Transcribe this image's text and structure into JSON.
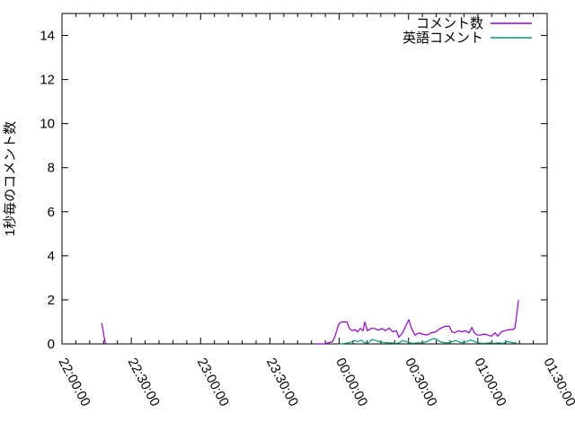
{
  "chart_data": {
    "type": "line",
    "title": "",
    "xlabel": "",
    "ylabel": "1秒毎のコメント数",
    "grid": false,
    "legend_position": "top-right-inside",
    "x_axis": {
      "unit": "time HH:MM:SS (minutes measured from 22:00:00)",
      "start_minutes": 0,
      "end_minutes": 210,
      "minor_tick_interval_minutes": 6,
      "major_ticks": [
        {
          "minutes": 0,
          "label": "22:00:00"
        },
        {
          "minutes": 30,
          "label": "22:30:00"
        },
        {
          "minutes": 60,
          "label": "23:00:00"
        },
        {
          "minutes": 90,
          "label": "23:30:00"
        },
        {
          "minutes": 120,
          "label": "00:00:00"
        },
        {
          "minutes": 150,
          "label": "00:30:00"
        },
        {
          "minutes": 180,
          "label": "01:00:00"
        },
        {
          "minutes": 210,
          "label": "01:30:00"
        }
      ]
    },
    "y_axis": {
      "min": 0,
      "max": 15,
      "tick_values": [
        0,
        2,
        4,
        6,
        8,
        10,
        12,
        14
      ]
    },
    "series": [
      {
        "name": "コメント数",
        "color": "#9400d3",
        "segments": [
          [
            [
              17.2,
              0.95
            ],
            [
              18.8,
              0
            ]
          ],
          [
            [
              110,
              0
            ],
            [
              112,
              0
            ],
            [
              113.6,
              0
            ],
            [
              115.2,
              0.05
            ],
            [
              117.1,
              0.1
            ],
            [
              118.2,
              0.35
            ],
            [
              119.8,
              0.9
            ],
            [
              121,
              1
            ],
            [
              123.3,
              1
            ],
            [
              124.4,
              0.7
            ],
            [
              125.6,
              0.6
            ],
            [
              126.8,
              0.65
            ],
            [
              128,
              0.55
            ],
            [
              129.1,
              0.7
            ],
            [
              130.3,
              0.6
            ],
            [
              131.1,
              1
            ],
            [
              132.2,
              0.6
            ],
            [
              133.8,
              0.7
            ],
            [
              135.4,
              0.7
            ],
            [
              136.9,
              0.62
            ],
            [
              138.5,
              0.7
            ],
            [
              140,
              0.6
            ],
            [
              141.6,
              0.72
            ],
            [
              143.1,
              0.55
            ],
            [
              144.7,
              0.6
            ],
            [
              145.8,
              0.3
            ],
            [
              147.4,
              0.5
            ],
            [
              149,
              0.85
            ],
            [
              150.1,
              1.1
            ],
            [
              151.3,
              0.7
            ],
            [
              152.8,
              0.4
            ],
            [
              154.4,
              0.5
            ],
            [
              156,
              0.45
            ],
            [
              157.9,
              0.4
            ],
            [
              159.9,
              0.5
            ],
            [
              161.8,
              0.55
            ],
            [
              163.7,
              0.7
            ],
            [
              165.7,
              0.8
            ],
            [
              167.6,
              0.8
            ],
            [
              168.8,
              0.55
            ],
            [
              170,
              0.5
            ],
            [
              171.5,
              0.6
            ],
            [
              173.1,
              0.55
            ],
            [
              174.6,
              0.6
            ],
            [
              176.2,
              0.5
            ],
            [
              177.4,
              0.75
            ],
            [
              178.5,
              0.5
            ],
            [
              179.7,
              0.4
            ],
            [
              181.2,
              0.4
            ],
            [
              182.8,
              0.45
            ],
            [
              184.4,
              0.4
            ],
            [
              185.9,
              0.35
            ],
            [
              187.5,
              0.5
            ],
            [
              188.6,
              0.35
            ],
            [
              190.2,
              0.55
            ],
            [
              191.7,
              0.6
            ],
            [
              193.3,
              0.65
            ],
            [
              194.9,
              0.65
            ],
            [
              196,
              0.7
            ],
            [
              196.8,
              1.3
            ],
            [
              197.6,
              2
            ]
          ]
        ]
      },
      {
        "name": "英語コメント",
        "color": "#009e73",
        "segments": [
          [
            [
              120.2,
              0
            ],
            [
              122,
              0.02
            ],
            [
              124,
              0.05
            ],
            [
              125.6,
              0.1
            ],
            [
              126.8,
              0.15
            ],
            [
              128,
              0.1
            ],
            [
              129.5,
              0.17
            ],
            [
              131,
              0.05
            ],
            [
              132.5,
              0.05
            ],
            [
              134.2,
              0.2
            ],
            [
              135.8,
              0.15
            ],
            [
              137.3,
              0.1
            ],
            [
              139,
              0.07
            ],
            [
              140.5,
              0.05
            ],
            [
              142.5,
              0.05
            ],
            [
              144.5,
              0.03
            ],
            [
              146,
              0.05
            ],
            [
              147.4,
              0.15
            ],
            [
              149,
              0.1
            ],
            [
              150.5,
              0.05
            ],
            [
              152,
              0.03
            ],
            [
              154,
              0.05
            ],
            [
              156,
              0.05
            ],
            [
              157.9,
              0.1
            ],
            [
              159.9,
              0.2
            ],
            [
              161,
              0.25
            ],
            [
              162.2,
              0.2
            ],
            [
              163.7,
              0.1
            ],
            [
              165.3,
              0.05
            ],
            [
              166.8,
              0.05
            ],
            [
              168.4,
              0.08
            ],
            [
              170.4,
              0.15
            ],
            [
              171.6,
              0.1
            ],
            [
              173.1,
              0.05
            ],
            [
              174.6,
              0.08
            ],
            [
              177,
              0.18
            ],
            [
              178.6,
              0.1
            ],
            [
              180.1,
              0.05
            ],
            [
              181.6,
              0.03
            ],
            [
              183.2,
              0.03
            ],
            [
              185.1,
              0.05
            ],
            [
              187,
              0.03
            ],
            [
              188.9,
              0.05
            ],
            [
              190.9,
              0.03
            ],
            [
              192.8,
              0.1
            ],
            [
              194,
              0.08
            ],
            [
              195.5,
              0.05
            ],
            [
              196.8,
              0.05
            ]
          ]
        ]
      }
    ]
  }
}
